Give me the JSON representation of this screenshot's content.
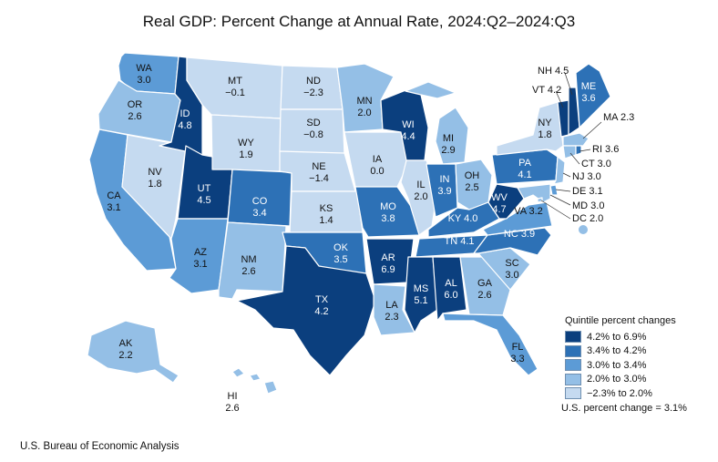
{
  "title": "Real GDP: Percent Change at Annual Rate, 2024:Q2–2024:Q3",
  "source": "U.S. Bureau of Economic Analysis",
  "colors": {
    "q1": "#0b3f7e",
    "q2": "#2d71b6",
    "q3": "#5c9bd6",
    "q4": "#94bfe6",
    "q5": "#c5daf0",
    "border": "#ffffff"
  },
  "legend": {
    "title": "Quintile percent changes",
    "items": [
      {
        "label": "4.2% to 6.9%",
        "class": "q1"
      },
      {
        "label": "3.4% to 4.2%",
        "class": "q2"
      },
      {
        "label": "3.0% to 3.4%",
        "class": "q3"
      },
      {
        "label": "2.0% to 3.0%",
        "class": "q4"
      },
      {
        "label": "−2.3% to 2.0%",
        "class": "q5"
      }
    ],
    "us_change": "U.S. percent change = 3.1%"
  },
  "states": {
    "WA": {
      "abbr": "WA",
      "value": "3.0",
      "class": "q3"
    },
    "OR": {
      "abbr": "OR",
      "value": "2.6",
      "class": "q4"
    },
    "CA": {
      "abbr": "CA",
      "value": "3.1",
      "class": "q3"
    },
    "NV": {
      "abbr": "NV",
      "value": "1.8",
      "class": "q5"
    },
    "ID": {
      "abbr": "ID",
      "value": "4.8",
      "class": "q1"
    },
    "MT": {
      "abbr": "MT",
      "value": "−0.1",
      "class": "q5"
    },
    "WY": {
      "abbr": "WY",
      "value": "1.9",
      "class": "q5"
    },
    "UT": {
      "abbr": "UT",
      "value": "4.5",
      "class": "q1"
    },
    "AZ": {
      "abbr": "AZ",
      "value": "3.1",
      "class": "q3"
    },
    "CO": {
      "abbr": "CO",
      "value": "3.4",
      "class": "q2"
    },
    "NM": {
      "abbr": "NM",
      "value": "2.6",
      "class": "q4"
    },
    "ND": {
      "abbr": "ND",
      "value": "−2.3",
      "class": "q5"
    },
    "SD": {
      "abbr": "SD",
      "value": "−0.8",
      "class": "q5"
    },
    "NE": {
      "abbr": "NE",
      "value": "−1.4",
      "class": "q5"
    },
    "KS": {
      "abbr": "KS",
      "value": "1.4",
      "class": "q5"
    },
    "OK": {
      "abbr": "OK",
      "value": "3.5",
      "class": "q2"
    },
    "TX": {
      "abbr": "TX",
      "value": "4.2",
      "class": "q1"
    },
    "MN": {
      "abbr": "MN",
      "value": "2.0",
      "class": "q4"
    },
    "IA": {
      "abbr": "IA",
      "value": "0.0",
      "class": "q5"
    },
    "MO": {
      "abbr": "MO",
      "value": "3.8",
      "class": "q2"
    },
    "AR": {
      "abbr": "AR",
      "value": "6.9",
      "class": "q1"
    },
    "LA": {
      "abbr": "LA",
      "value": "2.3",
      "class": "q4"
    },
    "WI": {
      "abbr": "WI",
      "value": "4.4",
      "class": "q1"
    },
    "IL": {
      "abbr": "IL",
      "value": "2.0",
      "class": "q5"
    },
    "MI": {
      "abbr": "MI",
      "value": "2.9",
      "class": "q4"
    },
    "IN": {
      "abbr": "IN",
      "value": "3.9",
      "class": "q2"
    },
    "OH": {
      "abbr": "OH",
      "value": "2.5",
      "class": "q4"
    },
    "KY": {
      "abbr": "KY",
      "value": "4.0",
      "class": "q2"
    },
    "TN": {
      "abbr": "TN",
      "value": "4.1",
      "class": "q2"
    },
    "MS": {
      "abbr": "MS",
      "value": "5.1",
      "class": "q1"
    },
    "AL": {
      "abbr": "AL",
      "value": "6.0",
      "class": "q1"
    },
    "GA": {
      "abbr": "GA",
      "value": "2.6",
      "class": "q4"
    },
    "FL": {
      "abbr": "FL",
      "value": "3.3",
      "class": "q3"
    },
    "SC": {
      "abbr": "SC",
      "value": "3.0",
      "class": "q4"
    },
    "NC": {
      "abbr": "NC",
      "value": "3.9",
      "class": "q2"
    },
    "VA": {
      "abbr": "VA",
      "value": "3.2",
      "class": "q3"
    },
    "WV": {
      "abbr": "WV",
      "value": "4.7",
      "class": "q1"
    },
    "PA": {
      "abbr": "PA",
      "value": "4.1",
      "class": "q2"
    },
    "NY": {
      "abbr": "NY",
      "value": "1.8",
      "class": "q5"
    },
    "ME": {
      "abbr": "ME",
      "value": "3.6",
      "class": "q2"
    },
    "NH": {
      "abbr": "NH",
      "value": "4.5",
      "class": "q1"
    },
    "VT": {
      "abbr": "VT",
      "value": "4.2",
      "class": "q1"
    },
    "MA": {
      "abbr": "MA",
      "value": "2.3",
      "class": "q4"
    },
    "RI": {
      "abbr": "RI",
      "value": "3.6",
      "class": "q2"
    },
    "CT": {
      "abbr": "CT",
      "value": "3.0",
      "class": "q4"
    },
    "NJ": {
      "abbr": "NJ",
      "value": "3.0",
      "class": "q4"
    },
    "DE": {
      "abbr": "DE",
      "value": "3.1",
      "class": "q3"
    },
    "MD": {
      "abbr": "MD",
      "value": "3.0",
      "class": "q4"
    },
    "DC": {
      "abbr": "DC",
      "value": "2.0",
      "class": "q4"
    },
    "AK": {
      "abbr": "AK",
      "value": "2.2",
      "class": "q4"
    },
    "HI": {
      "abbr": "HI",
      "value": "2.6",
      "class": "q4"
    }
  }
}
